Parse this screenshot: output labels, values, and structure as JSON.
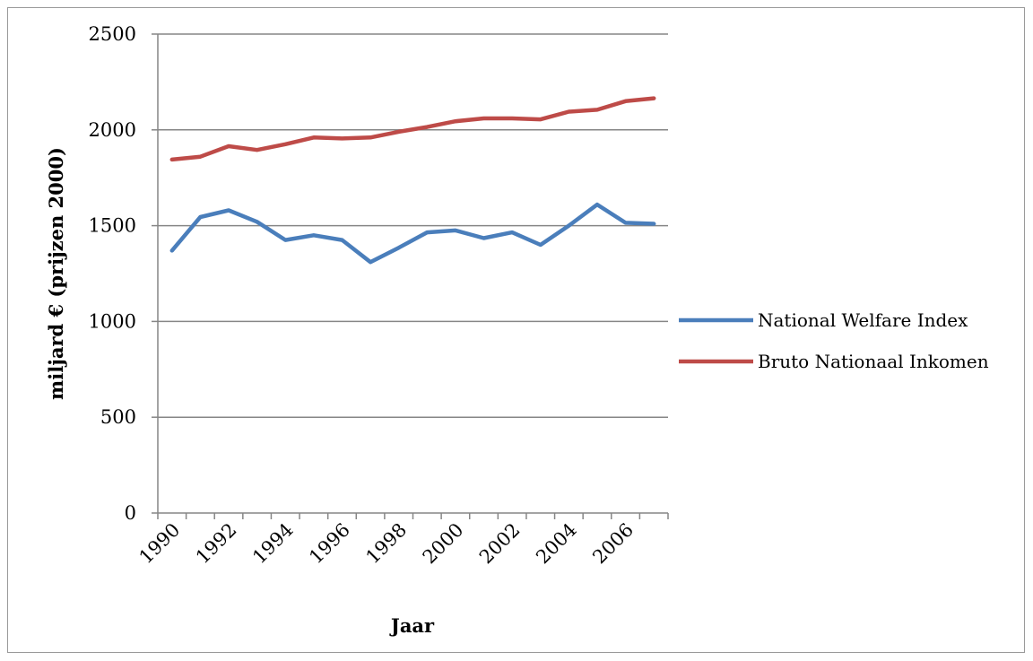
{
  "chart_data": {
    "type": "line",
    "title": "",
    "xlabel": "Jaar",
    "ylabel": "miljard € (prijzen 2000)",
    "ylim": [
      0,
      2500
    ],
    "yticks": [
      0,
      500,
      1000,
      1500,
      2000,
      2500
    ],
    "x": [
      1990,
      1991,
      1992,
      1993,
      1994,
      1995,
      1996,
      1997,
      1998,
      1999,
      2000,
      2001,
      2002,
      2003,
      2004,
      2005,
      2006,
      2007
    ],
    "xtick_labels": [
      "1990",
      "1992",
      "1994",
      "1996",
      "1998",
      "2000",
      "2002",
      "2004",
      "2006"
    ],
    "grid": true,
    "legend_position": "right",
    "series": [
      {
        "name": "National Welfare Index",
        "color": "#4a7ebb",
        "values": [
          1370,
          1545,
          1580,
          1520,
          1425,
          1450,
          1425,
          1310,
          1385,
          1465,
          1475,
          1435,
          1465,
          1400,
          1500,
          1610,
          1515,
          1510
        ]
      },
      {
        "name": "Bruto Nationaal Inkomen",
        "color": "#be4b48",
        "values": [
          1845,
          1860,
          1915,
          1895,
          1925,
          1960,
          1955,
          1960,
          1990,
          2015,
          2045,
          2060,
          2060,
          2055,
          2095,
          2105,
          2150,
          2165
        ]
      }
    ]
  }
}
